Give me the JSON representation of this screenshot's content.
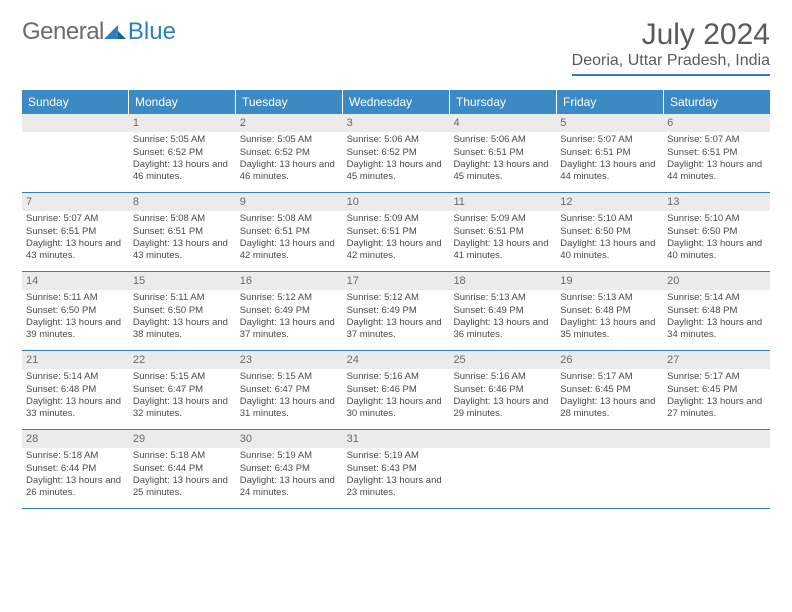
{
  "logo": {
    "gray": "General",
    "blue": "Blue"
  },
  "title": "July 2024",
  "location": "Deoria, Uttar Pradesh, India",
  "colors": {
    "accent": "#3b8ac4",
    "rule": "#2f7fc0",
    "num_bg": "#ebebeb",
    "text": "#4a4a4a"
  },
  "day_names": [
    "Sunday",
    "Monday",
    "Tuesday",
    "Wednesday",
    "Thursday",
    "Friday",
    "Saturday"
  ],
  "weeks": [
    [
      null,
      {
        "n": "1",
        "sr": "5:05 AM",
        "ss": "6:52 PM",
        "dl": "13 hours and 46 minutes."
      },
      {
        "n": "2",
        "sr": "5:05 AM",
        "ss": "6:52 PM",
        "dl": "13 hours and 46 minutes."
      },
      {
        "n": "3",
        "sr": "5:06 AM",
        "ss": "6:52 PM",
        "dl": "13 hours and 45 minutes."
      },
      {
        "n": "4",
        "sr": "5:06 AM",
        "ss": "6:51 PM",
        "dl": "13 hours and 45 minutes."
      },
      {
        "n": "5",
        "sr": "5:07 AM",
        "ss": "6:51 PM",
        "dl": "13 hours and 44 minutes."
      },
      {
        "n": "6",
        "sr": "5:07 AM",
        "ss": "6:51 PM",
        "dl": "13 hours and 44 minutes."
      }
    ],
    [
      {
        "n": "7",
        "sr": "5:07 AM",
        "ss": "6:51 PM",
        "dl": "13 hours and 43 minutes."
      },
      {
        "n": "8",
        "sr": "5:08 AM",
        "ss": "6:51 PM",
        "dl": "13 hours and 43 minutes."
      },
      {
        "n": "9",
        "sr": "5:08 AM",
        "ss": "6:51 PM",
        "dl": "13 hours and 42 minutes."
      },
      {
        "n": "10",
        "sr": "5:09 AM",
        "ss": "6:51 PM",
        "dl": "13 hours and 42 minutes."
      },
      {
        "n": "11",
        "sr": "5:09 AM",
        "ss": "6:51 PM",
        "dl": "13 hours and 41 minutes."
      },
      {
        "n": "12",
        "sr": "5:10 AM",
        "ss": "6:50 PM",
        "dl": "13 hours and 40 minutes."
      },
      {
        "n": "13",
        "sr": "5:10 AM",
        "ss": "6:50 PM",
        "dl": "13 hours and 40 minutes."
      }
    ],
    [
      {
        "n": "14",
        "sr": "5:11 AM",
        "ss": "6:50 PM",
        "dl": "13 hours and 39 minutes."
      },
      {
        "n": "15",
        "sr": "5:11 AM",
        "ss": "6:50 PM",
        "dl": "13 hours and 38 minutes."
      },
      {
        "n": "16",
        "sr": "5:12 AM",
        "ss": "6:49 PM",
        "dl": "13 hours and 37 minutes."
      },
      {
        "n": "17",
        "sr": "5:12 AM",
        "ss": "6:49 PM",
        "dl": "13 hours and 37 minutes."
      },
      {
        "n": "18",
        "sr": "5:13 AM",
        "ss": "6:49 PM",
        "dl": "13 hours and 36 minutes."
      },
      {
        "n": "19",
        "sr": "5:13 AM",
        "ss": "6:48 PM",
        "dl": "13 hours and 35 minutes."
      },
      {
        "n": "20",
        "sr": "5:14 AM",
        "ss": "6:48 PM",
        "dl": "13 hours and 34 minutes."
      }
    ],
    [
      {
        "n": "21",
        "sr": "5:14 AM",
        "ss": "6:48 PM",
        "dl": "13 hours and 33 minutes."
      },
      {
        "n": "22",
        "sr": "5:15 AM",
        "ss": "6:47 PM",
        "dl": "13 hours and 32 minutes."
      },
      {
        "n": "23",
        "sr": "5:15 AM",
        "ss": "6:47 PM",
        "dl": "13 hours and 31 minutes."
      },
      {
        "n": "24",
        "sr": "5:16 AM",
        "ss": "6:46 PM",
        "dl": "13 hours and 30 minutes."
      },
      {
        "n": "25",
        "sr": "5:16 AM",
        "ss": "6:46 PM",
        "dl": "13 hours and 29 minutes."
      },
      {
        "n": "26",
        "sr": "5:17 AM",
        "ss": "6:45 PM",
        "dl": "13 hours and 28 minutes."
      },
      {
        "n": "27",
        "sr": "5:17 AM",
        "ss": "6:45 PM",
        "dl": "13 hours and 27 minutes."
      }
    ],
    [
      {
        "n": "28",
        "sr": "5:18 AM",
        "ss": "6:44 PM",
        "dl": "13 hours and 26 minutes."
      },
      {
        "n": "29",
        "sr": "5:18 AM",
        "ss": "6:44 PM",
        "dl": "13 hours and 25 minutes."
      },
      {
        "n": "30",
        "sr": "5:19 AM",
        "ss": "6:43 PM",
        "dl": "13 hours and 24 minutes."
      },
      {
        "n": "31",
        "sr": "5:19 AM",
        "ss": "6:43 PM",
        "dl": "13 hours and 23 minutes."
      },
      null,
      null,
      null
    ]
  ],
  "labels": {
    "sunrise": "Sunrise:",
    "sunset": "Sunset:",
    "daylight": "Daylight:"
  }
}
